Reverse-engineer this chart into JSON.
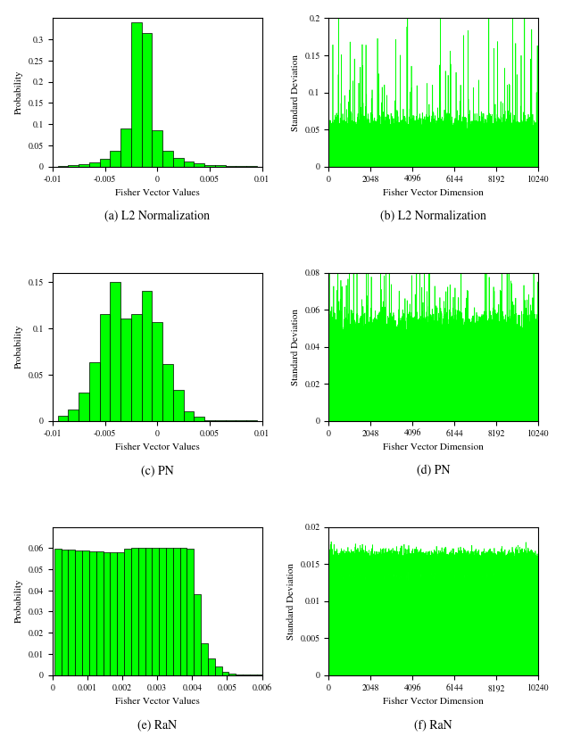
{
  "fig_width": 6.32,
  "fig_height": 8.44,
  "bar_color": "#00FF00",
  "bar_edge_color": "#000000",
  "line_color": "#00FF00",
  "bg_color": "#FFFFFF",
  "captions": [
    "(a) L2 Normalization",
    "(b) L2 Normalization",
    "(c) PN",
    "(d) PN",
    "(e) RaN",
    "(f) RaN"
  ],
  "hist_a": {
    "xlabel": "Fisher Vector Values",
    "ylabel": "Probability",
    "xlim": [
      -0.01,
      0.01
    ],
    "ylim": [
      0,
      0.35
    ],
    "yticks": [
      0,
      0.05,
      0.1,
      0.15,
      0.2,
      0.25,
      0.3
    ],
    "xticks": [
      -0.01,
      -0.005,
      0,
      0.005,
      0.01
    ],
    "bar_centers": [
      -0.009,
      -0.008,
      -0.007,
      -0.006,
      -0.005,
      -0.004,
      -0.003,
      -0.002,
      -0.001,
      0.0,
      0.001,
      0.002,
      0.003,
      0.004,
      0.005,
      0.006,
      0.007,
      0.008,
      0.009
    ],
    "bar_heights": [
      0.002,
      0.003,
      0.005,
      0.01,
      0.018,
      0.037,
      0.09,
      0.34,
      0.315,
      0.085,
      0.036,
      0.02,
      0.011,
      0.007,
      0.004,
      0.003,
      0.002,
      0.002,
      0.001
    ],
    "bar_width": 0.001
  },
  "line_b": {
    "xlabel": "Fisher Vector Dimension",
    "ylabel": "Standard Deviation",
    "xlim": [
      0,
      10240
    ],
    "ylim": [
      0,
      0.2
    ],
    "yticks": [
      0,
      0.05,
      0.1,
      0.15,
      0.2
    ],
    "xticks": [
      0,
      2048,
      4096,
      6144,
      8192,
      10240
    ],
    "base_level": 0.035,
    "n_points": 10240
  },
  "hist_c": {
    "xlabel": "Fisher Vector Values",
    "ylabel": "Probability",
    "xlim": [
      -0.01,
      0.01
    ],
    "ylim": [
      0,
      0.16
    ],
    "yticks": [
      0,
      0.05,
      0.1,
      0.15
    ],
    "xticks": [
      -0.01,
      -0.005,
      0,
      0.005,
      0.01
    ],
    "bar_centers": [
      -0.009,
      -0.008,
      -0.007,
      -0.006,
      -0.005,
      -0.004,
      -0.003,
      -0.002,
      -0.001,
      0.0,
      0.001,
      0.002,
      0.003,
      0.004,
      0.005,
      0.006,
      0.007,
      0.008,
      0.009
    ],
    "bar_heights": [
      0.005,
      0.012,
      0.03,
      0.063,
      0.115,
      0.15,
      0.11,
      0.115,
      0.14,
      0.107,
      0.061,
      0.033,
      0.01,
      0.004,
      0.001,
      0.0005,
      0.0002,
      0.0001,
      0.0001
    ],
    "bar_width": 0.001
  },
  "line_d": {
    "xlabel": "Fisher Vector Dimension",
    "ylabel": "Standard Deviation",
    "xlim": [
      0,
      10240
    ],
    "ylim": [
      0,
      0.08
    ],
    "yticks": [
      0,
      0.02,
      0.04,
      0.06,
      0.08
    ],
    "xticks": [
      0,
      2048,
      4096,
      6144,
      8192,
      10240
    ],
    "base_level": 0.037,
    "n_points": 10240
  },
  "hist_e": {
    "xlabel": "Fisher Vector Values",
    "ylabel": "Probability",
    "xlim": [
      0,
      0.006
    ],
    "ylim": [
      0,
      0.07
    ],
    "yticks": [
      0,
      0.01,
      0.02,
      0.03,
      0.04,
      0.05,
      0.06
    ],
    "xticks": [
      0,
      0.001,
      0.002,
      0.003,
      0.004,
      0.005,
      0.006
    ],
    "bar_centers": [
      0.00015,
      0.00035,
      0.00055,
      0.00075,
      0.00095,
      0.00115,
      0.00135,
      0.00155,
      0.00175,
      0.00195,
      0.00215,
      0.00235,
      0.00255,
      0.00275,
      0.00295,
      0.00315,
      0.00335,
      0.00355,
      0.00375,
      0.00395,
      0.00415,
      0.00435,
      0.00455,
      0.00475,
      0.00495,
      0.00515,
      0.00535,
      0.00555,
      0.00575,
      0.00595
    ],
    "bar_heights": [
      0.0595,
      0.0593,
      0.0591,
      0.059,
      0.0589,
      0.0585,
      0.0583,
      0.0581,
      0.058,
      0.0582,
      0.0598,
      0.06,
      0.0601,
      0.0602,
      0.0601,
      0.06,
      0.06,
      0.0601,
      0.06,
      0.0597,
      0.038,
      0.015,
      0.008,
      0.004,
      0.0015,
      0.0005,
      0.0002,
      0.0001,
      0.0001,
      0.0001
    ],
    "bar_width": 0.0002
  },
  "line_f": {
    "xlabel": "Fisher Vector Dimension",
    "ylabel": "Standard Deviation",
    "xlim": [
      0,
      10240
    ],
    "ylim": [
      0,
      0.02
    ],
    "yticks": [
      0,
      0.005,
      0.01,
      0.015,
      0.02
    ],
    "xticks": [
      0,
      2048,
      4096,
      6144,
      8192,
      10240
    ],
    "base_level": 0.015,
    "n_points": 10240
  }
}
